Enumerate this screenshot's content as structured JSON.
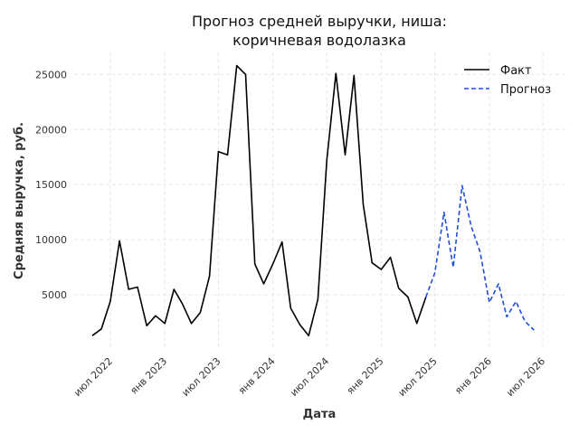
{
  "chart_data": {
    "type": "line",
    "title_lines": [
      "Прогноз средней выручки, ниша:",
      "коричневая водолазка"
    ],
    "xlabel": "Дата",
    "ylabel": "Средняя выручка, руб.",
    "ylim": [
      0,
      27000
    ],
    "xlim": [
      "2022-03-01",
      "2026-09-15"
    ],
    "yticks": [
      5000,
      10000,
      15000,
      20000,
      25000
    ],
    "xticks": [
      {
        "date": "2022-07-01",
        "label": "июл 2022"
      },
      {
        "date": "2023-01-01",
        "label": "янв 2023"
      },
      {
        "date": "2023-07-01",
        "label": "июл 2023"
      },
      {
        "date": "2024-01-01",
        "label": "янв 2024"
      },
      {
        "date": "2024-07-01",
        "label": "июл 2024"
      },
      {
        "date": "2025-01-01",
        "label": "янв 2025"
      },
      {
        "date": "2025-07-01",
        "label": "июл 2025"
      },
      {
        "date": "2026-01-01",
        "label": "янв 2026"
      },
      {
        "date": "2026-07-01",
        "label": "июл 2026"
      }
    ],
    "grid": true,
    "legend_position": "top-right",
    "series": [
      {
        "name": "Факт",
        "color": "#000000",
        "style": "solid",
        "points": [
          [
            "2022-05-01",
            1300
          ],
          [
            "2022-06-01",
            1900
          ],
          [
            "2022-07-01",
            4400
          ],
          [
            "2022-08-01",
            9900
          ],
          [
            "2022-09-01",
            5500
          ],
          [
            "2022-10-01",
            5700
          ],
          [
            "2022-11-01",
            2200
          ],
          [
            "2022-12-01",
            3100
          ],
          [
            "2023-01-01",
            2400
          ],
          [
            "2023-02-01",
            5500
          ],
          [
            "2023-03-01",
            4200
          ],
          [
            "2023-04-01",
            2400
          ],
          [
            "2023-05-01",
            3400
          ],
          [
            "2023-06-01",
            6700
          ],
          [
            "2023-07-01",
            18000
          ],
          [
            "2023-08-01",
            17700
          ],
          [
            "2023-09-01",
            25800
          ],
          [
            "2023-10-01",
            25000
          ],
          [
            "2023-11-01",
            7800
          ],
          [
            "2023-12-01",
            6000
          ],
          [
            "2024-01-01",
            7800
          ],
          [
            "2024-02-01",
            9800
          ],
          [
            "2024-03-01",
            3800
          ],
          [
            "2024-04-01",
            2300
          ],
          [
            "2024-05-01",
            1300
          ],
          [
            "2024-06-01",
            4600
          ],
          [
            "2024-07-01",
            17200
          ],
          [
            "2024-08-01",
            25100
          ],
          [
            "2024-09-01",
            17700
          ],
          [
            "2024-10-01",
            24900
          ],
          [
            "2024-11-01",
            13200
          ],
          [
            "2024-12-01",
            7900
          ],
          [
            "2025-01-01",
            7300
          ],
          [
            "2025-02-01",
            8400
          ],
          [
            "2025-03-01",
            5600
          ],
          [
            "2025-04-01",
            4800
          ],
          [
            "2025-05-01",
            2400
          ],
          [
            "2025-06-01",
            4800
          ]
        ]
      },
      {
        "name": "Прогноз",
        "color": "#1f4fd8",
        "style": "dashed",
        "points": [
          [
            "2025-06-01",
            4800
          ],
          [
            "2025-07-01",
            7000
          ],
          [
            "2025-08-01",
            12500
          ],
          [
            "2025-09-01",
            7500
          ],
          [
            "2025-10-01",
            14900
          ],
          [
            "2025-11-01",
            11200
          ],
          [
            "2025-12-01",
            8900
          ],
          [
            "2026-01-01",
            4300
          ],
          [
            "2026-02-01",
            6000
          ],
          [
            "2026-03-01",
            3000
          ],
          [
            "2026-04-01",
            4400
          ],
          [
            "2026-05-01",
            2600
          ],
          [
            "2026-06-01",
            1800
          ]
        ]
      }
    ]
  }
}
